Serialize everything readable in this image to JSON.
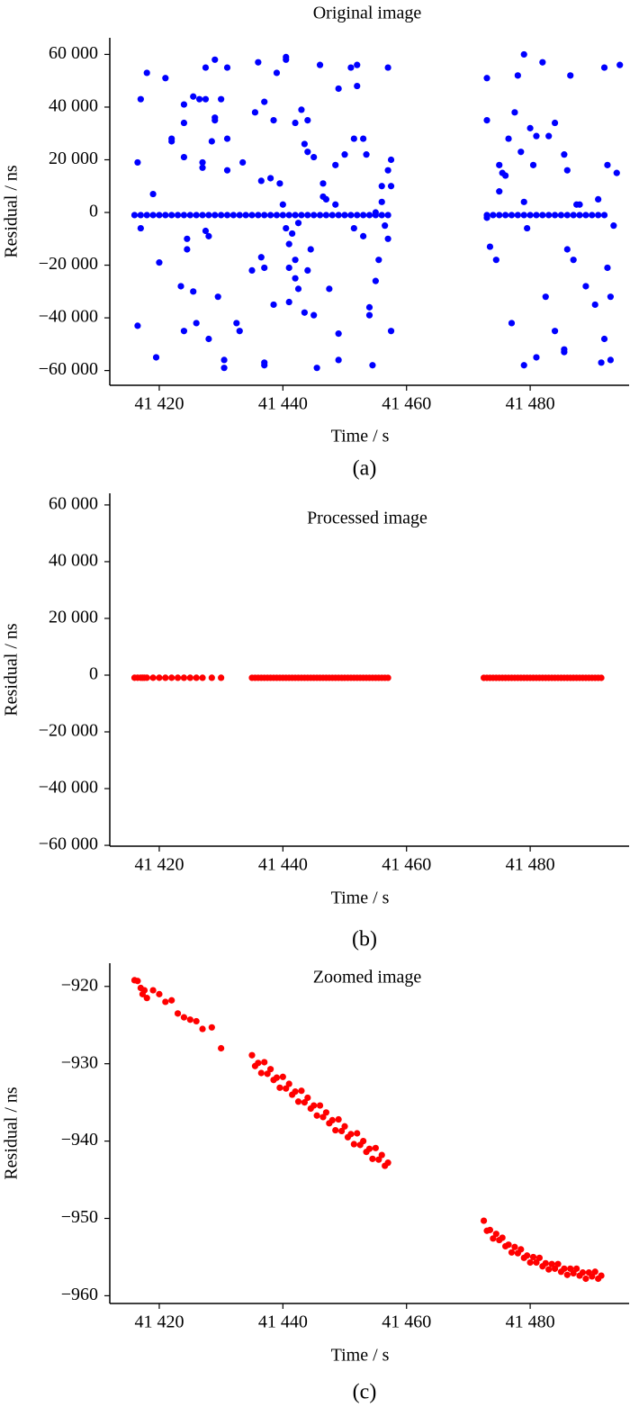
{
  "chart_data": [
    {
      "type": "scatter",
      "title": "Original image",
      "x_label": "Time / s",
      "y_label": "Residual / ns",
      "caption": "(a)",
      "color": "#0000ff",
      "xlim": [
        41412,
        41496
      ],
      "ylim": [
        -65600,
        66300
      ],
      "xticks": [
        {
          "value": 41420,
          "label": "41 420"
        },
        {
          "value": 41440,
          "label": "41 440"
        },
        {
          "value": 41460,
          "label": "41 460"
        },
        {
          "value": 41480,
          "label": "41 480"
        }
      ],
      "yticks": [
        {
          "value": 60000,
          "label": "60 000"
        },
        {
          "value": 40000,
          "label": "40 000"
        },
        {
          "value": 20000,
          "label": "20 000"
        },
        0,
        {
          "value": -20000,
          "label": "−20 000"
        },
        {
          "value": -40000,
          "label": "−40 000"
        },
        {
          "value": -60000,
          "label": "−60 000"
        }
      ],
      "x": [
        41416,
        41417,
        41418,
        41419,
        41420,
        41421,
        41422,
        41423,
        41424,
        41425,
        41426,
        41427,
        41428,
        41429,
        41430,
        41431,
        41432,
        41433,
        41434,
        41435,
        41436,
        41437,
        41438,
        41439,
        41440,
        41441,
        41442,
        41443,
        41444,
        41445,
        41446,
        41447,
        41448,
        41449,
        41450,
        41451,
        41452,
        41453,
        41454,
        41455,
        41456,
        41457,
        41473,
        41474,
        41475,
        41476,
        41477,
        41478,
        41479,
        41480,
        41481,
        41482,
        41483,
        41484,
        41485,
        41486,
        41487,
        41488,
        41489,
        41490,
        41491,
        41492,
        41416.5,
        41416.5,
        41417,
        41417,
        41418,
        41419,
        41419.5,
        41420,
        41421,
        41422,
        41422,
        41423.5,
        41424,
        41424,
        41424,
        41424,
        41424.5,
        41424.5,
        41425.5,
        41425.5,
        41426,
        41426.5,
        41427,
        41427,
        41427.5,
        41427.5,
        41427.5,
        41428,
        41428,
        41428.5,
        41429,
        41429,
        41429,
        41429.5,
        41430,
        41430.5,
        41430.5,
        41431,
        41431,
        41431,
        41432.5,
        41433,
        41433.5,
        41435,
        41435.5,
        41436,
        41436.5,
        41436.5,
        41437,
        41437,
        41437,
        41437,
        41438,
        41438.5,
        41438.5,
        41439,
        41439.5,
        41440,
        41440.5,
        41440.5,
        41440.5,
        41441,
        41441,
        41441,
        41441.5,
        41442,
        41442,
        41442,
        41442.5,
        41442.5,
        41443,
        41443.5,
        41443.5,
        41444,
        41444,
        41444,
        41444.5,
        41445,
        41445,
        41445.5,
        41446,
        41446.5,
        41446.5,
        41447,
        41447.5,
        41448.5,
        41448.5,
        41449,
        41449,
        41449,
        41450,
        41451,
        41451.5,
        41451.5,
        41452,
        41452,
        41453,
        41453,
        41453.5,
        41454,
        41454,
        41454.5,
        41455,
        41455,
        41455.5,
        41456,
        41456,
        41456.5,
        41457,
        41457,
        41457,
        41457.5,
        41457.5,
        41457.5,
        41473,
        41473,
        41473,
        41473.5,
        41474.5,
        41475,
        41475,
        41475.5,
        41476,
        41476.5,
        41477,
        41477.5,
        41478,
        41478.5,
        41479,
        41479,
        41479,
        41479.5,
        41480,
        41480.5,
        41481,
        41481,
        41482,
        41482.5,
        41483,
        41484,
        41484,
        41485.5,
        41485.5,
        41485.5,
        41486,
        41486,
        41486.5,
        41487,
        41487.5,
        41488,
        41489,
        41490.5,
        41491,
        41491.5,
        41492,
        41492,
        41492.5,
        41492.5,
        41493,
        41493,
        41493.5,
        41494,
        41494.5
      ],
      "values": [
        -1000,
        -1000,
        -1000,
        -1000,
        -1000,
        -1000,
        -1000,
        -1000,
        -1000,
        -1000,
        -1000,
        -1000,
        -1000,
        -1000,
        -1000,
        -1000,
        -1000,
        -1000,
        -1000,
        -1000,
        -1000,
        -1000,
        -1000,
        -1000,
        -1000,
        -1000,
        -1000,
        -1000,
        -1000,
        -1000,
        -1000,
        -1000,
        -1000,
        -1000,
        -1000,
        -1000,
        -1000,
        -1000,
        -1000,
        -1000,
        -1000,
        -1000,
        -1000,
        -1000,
        -1000,
        -1000,
        -1000,
        -1000,
        -1000,
        -1000,
        -1000,
        -1000,
        -1000,
        -1000,
        -1000,
        -1000,
        -1000,
        -1000,
        -1000,
        -1000,
        -1000,
        -1000,
        19000,
        -43000,
        43000,
        -6000,
        53000,
        7000,
        -55000,
        -19000,
        51000,
        28000,
        27000,
        -28000,
        -45000,
        41000,
        21000,
        34000,
        -14000,
        -10000,
        44000,
        -30000,
        -42000,
        43000,
        19000,
        17000,
        55000,
        43000,
        -7000,
        -48000,
        -9000,
        27000,
        58000,
        36000,
        35000,
        -32000,
        43000,
        -56000,
        -59000,
        55000,
        28000,
        16000,
        -42000,
        -45000,
        19000,
        -22000,
        38000,
        57000,
        12000,
        -17000,
        42000,
        -21000,
        -57000,
        -58000,
        13000,
        35000,
        -35000,
        53000,
        11000,
        3000,
        59000,
        58000,
        -6000,
        -12000,
        -21000,
        -34000,
        -8000,
        34000,
        -18000,
        -25000,
        -4000,
        -29000,
        39000,
        26000,
        -38000,
        35000,
        23000,
        -22000,
        -14000,
        21000,
        -39000,
        -59000,
        56000,
        11000,
        6000,
        5000,
        -29000,
        18000,
        3000,
        47000,
        -46000,
        -56000,
        22000,
        55000,
        28000,
        -6000,
        56000,
        48000,
        28000,
        -9000,
        22000,
        -36000,
        -39000,
        -58000,
        0,
        -26000,
        -18000,
        10000,
        4000,
        -5000,
        55000,
        16000,
        -10000,
        20000,
        10000,
        -45000,
        51000,
        35000,
        -2000,
        -13000,
        -18000,
        8000,
        18000,
        15000,
        14000,
        28000,
        -42000,
        38000,
        52000,
        23000,
        -58000,
        60000,
        4000,
        -6000,
        32000,
        18000,
        -55000,
        29000,
        57000,
        -32000,
        29000,
        -45000,
        34000,
        -52000,
        -53000,
        22000,
        16000,
        -14000,
        52000,
        -18000,
        3000,
        3000,
        -28000,
        -35000,
        5000,
        -57000,
        55000,
        -48000,
        -21000,
        18000,
        -32000,
        -56000,
        -5000,
        15000,
        56000
      ]
    },
    {
      "type": "scatter",
      "title": "Processed image",
      "x_label": "Time / s",
      "y_label": "Residual / ns",
      "caption": "(b)",
      "color": "#ff0000",
      "xlim": [
        41412,
        41496
      ],
      "ylim": [
        -60300,
        64100
      ],
      "xticks": [
        {
          "value": 41420,
          "label": "41 420"
        },
        {
          "value": 41440,
          "label": "41 440"
        },
        {
          "value": 41460,
          "label": "41 460"
        },
        {
          "value": 41480,
          "label": "41 480"
        }
      ],
      "yticks": [
        {
          "value": 60000,
          "label": "60 000"
        },
        {
          "value": 40000,
          "label": "40 000"
        },
        {
          "value": 20000,
          "label": "20 000"
        },
        0,
        {
          "value": -20000,
          "label": "−20 000"
        },
        {
          "value": -40000,
          "label": "−40 000"
        },
        {
          "value": -60000,
          "label": "−60 000"
        }
      ],
      "x": [
        41416,
        41416.5,
        41417,
        41417.3,
        41417.6,
        41418,
        41419,
        41420,
        41421,
        41422,
        41423,
        41424,
        41425,
        41426,
        41427,
        41428.5,
        41430,
        41435,
        41435.5,
        41436,
        41436.5,
        41437,
        41437.5,
        41438,
        41438.5,
        41439,
        41439.5,
        41440,
        41440.5,
        41441,
        41441.5,
        41442,
        41442.5,
        41443,
        41443.5,
        41444,
        41444.5,
        41445,
        41445.5,
        41446,
        41446.5,
        41447,
        41447.5,
        41448,
        41448.5,
        41449,
        41449.5,
        41450,
        41450.5,
        41451,
        41451.5,
        41452,
        41452.5,
        41453,
        41453.5,
        41454,
        41454.5,
        41455,
        41455.5,
        41456,
        41456.5,
        41457,
        41472.5,
        41473,
        41473.5,
        41474,
        41474.5,
        41475,
        41475.5,
        41476,
        41476.5,
        41477,
        41477.5,
        41478,
        41478.5,
        41479,
        41479.5,
        41480,
        41480.5,
        41481,
        41481.5,
        41482,
        41482.5,
        41483,
        41483.5,
        41484,
        41484.5,
        41485,
        41485.5,
        41486,
        41486.5,
        41487,
        41487.5,
        41488,
        41488.5,
        41489,
        41489.5,
        41490,
        41490.5,
        41491,
        41491.5
      ],
      "values": [
        -919.2,
        -919.3,
        -920.2,
        -921,
        -920.5,
        -921.5,
        -920.5,
        -921,
        -922,
        -921.8,
        -923.5,
        -924,
        -924.3,
        -924.5,
        -925.5,
        -925.3,
        -928,
        -928.9,
        -930.3,
        -929.9,
        -931.2,
        -929.8,
        -931.3,
        -930.7,
        -932.1,
        -931.8,
        -933.1,
        -931.7,
        -933.2,
        -932.6,
        -934.0,
        -933.6,
        -934.9,
        -933.5,
        -935.0,
        -934.4,
        -935.8,
        -935.4,
        -936.7,
        -935.4,
        -936.9,
        -936.3,
        -937.7,
        -937.3,
        -938.6,
        -937.2,
        -938.7,
        -938.1,
        -939.5,
        -939.1,
        -940.4,
        -939.0,
        -940.5,
        -940.0,
        -941.4,
        -941.0,
        -942.3,
        -940.9,
        -942.4,
        -941.8,
        -943.2,
        -942.8,
        -950.3,
        -951.6,
        -951.5,
        -952.6,
        -952.0,
        -952.8,
        -952.5,
        -953.6,
        -953.4,
        -954.4,
        -953.7,
        -954.5,
        -954.0,
        -955.1,
        -954.8,
        -955.7,
        -955.0,
        -955.7,
        -955.1,
        -956.2,
        -955.8,
        -956.6,
        -955.9,
        -956.5,
        -955.9,
        -956.9,
        -956.5,
        -957.3,
        -956.5,
        -957.1,
        -956.5,
        -957.4,
        -957.0,
        -957.8,
        -957.0,
        -957.5,
        -956.9,
        -957.8,
        -957.4
      ]
    },
    {
      "type": "scatter",
      "title": "Zoomed image",
      "x_label": "Time / s",
      "y_label": "Residual / ns",
      "caption": "(c)",
      "color": "#ff0000",
      "xlim": [
        41412,
        41496
      ],
      "ylim": [
        -961,
        -917
      ],
      "xticks": [
        {
          "value": 41420,
          "label": "41 420"
        },
        {
          "value": 41440,
          "label": "41 440"
        },
        {
          "value": 41460,
          "label": "41 460"
        },
        {
          "value": 41480,
          "label": "41 480"
        }
      ],
      "yticks": [
        {
          "value": -920,
          "label": "−920"
        },
        {
          "value": -930,
          "label": "−930"
        },
        {
          "value": -940,
          "label": "−940"
        },
        {
          "value": -950,
          "label": "−950"
        },
        {
          "value": -960,
          "label": "−960"
        }
      ],
      "x": [
        41416,
        41416.5,
        41417,
        41417.3,
        41417.6,
        41418,
        41419,
        41420,
        41421,
        41422,
        41423,
        41424,
        41425,
        41426,
        41427,
        41428.5,
        41430,
        41435,
        41435.5,
        41436,
        41436.5,
        41437,
        41437.5,
        41438,
        41438.5,
        41439,
        41439.5,
        41440,
        41440.5,
        41441,
        41441.5,
        41442,
        41442.5,
        41443,
        41443.5,
        41444,
        41444.5,
        41445,
        41445.5,
        41446,
        41446.5,
        41447,
        41447.5,
        41448,
        41448.5,
        41449,
        41449.5,
        41450,
        41450.5,
        41451,
        41451.5,
        41452,
        41452.5,
        41453,
        41453.5,
        41454,
        41454.5,
        41455,
        41455.5,
        41456,
        41456.5,
        41457,
        41472.5,
        41473,
        41473.5,
        41474,
        41474.5,
        41475,
        41475.5,
        41476,
        41476.5,
        41477,
        41477.5,
        41478,
        41478.5,
        41479,
        41479.5,
        41480,
        41480.5,
        41481,
        41481.5,
        41482,
        41482.5,
        41483,
        41483.5,
        41484,
        41484.5,
        41485,
        41485.5,
        41486,
        41486.5,
        41487,
        41487.5,
        41488,
        41488.5,
        41489,
        41489.5,
        41490,
        41490.5,
        41491,
        41491.5
      ],
      "values": [
        -919.2,
        -919.3,
        -920.2,
        -921,
        -920.5,
        -921.5,
        -920.5,
        -921,
        -922,
        -921.8,
        -923.5,
        -924,
        -924.3,
        -924.5,
        -925.5,
        -925.3,
        -928,
        -928.9,
        -930.3,
        -929.9,
        -931.2,
        -929.8,
        -931.3,
        -930.7,
        -932.1,
        -931.8,
        -933.1,
        -931.7,
        -933.2,
        -932.6,
        -934.0,
        -933.6,
        -934.9,
        -933.5,
        -935.0,
        -934.4,
        -935.8,
        -935.4,
        -936.7,
        -935.4,
        -936.9,
        -936.3,
        -937.7,
        -937.3,
        -938.6,
        -937.2,
        -938.7,
        -938.1,
        -939.5,
        -939.1,
        -940.4,
        -939.0,
        -940.5,
        -940.0,
        -941.4,
        -941.0,
        -942.3,
        -940.9,
        -942.4,
        -941.8,
        -943.2,
        -942.8,
        -950.3,
        -951.6,
        -951.5,
        -952.6,
        -952.0,
        -952.8,
        -952.5,
        -953.6,
        -953.4,
        -954.4,
        -953.7,
        -954.5,
        -954.0,
        -955.1,
        -954.8,
        -955.7,
        -955.0,
        -955.7,
        -955.1,
        -956.2,
        -955.8,
        -956.6,
        -955.9,
        -956.5,
        -955.9,
        -956.9,
        -956.5,
        -957.3,
        -956.5,
        -957.1,
        -956.5,
        -957.4,
        -957.0,
        -957.8,
        -957.0,
        -957.5,
        -956.9,
        -957.8,
        -957.4
      ]
    }
  ]
}
